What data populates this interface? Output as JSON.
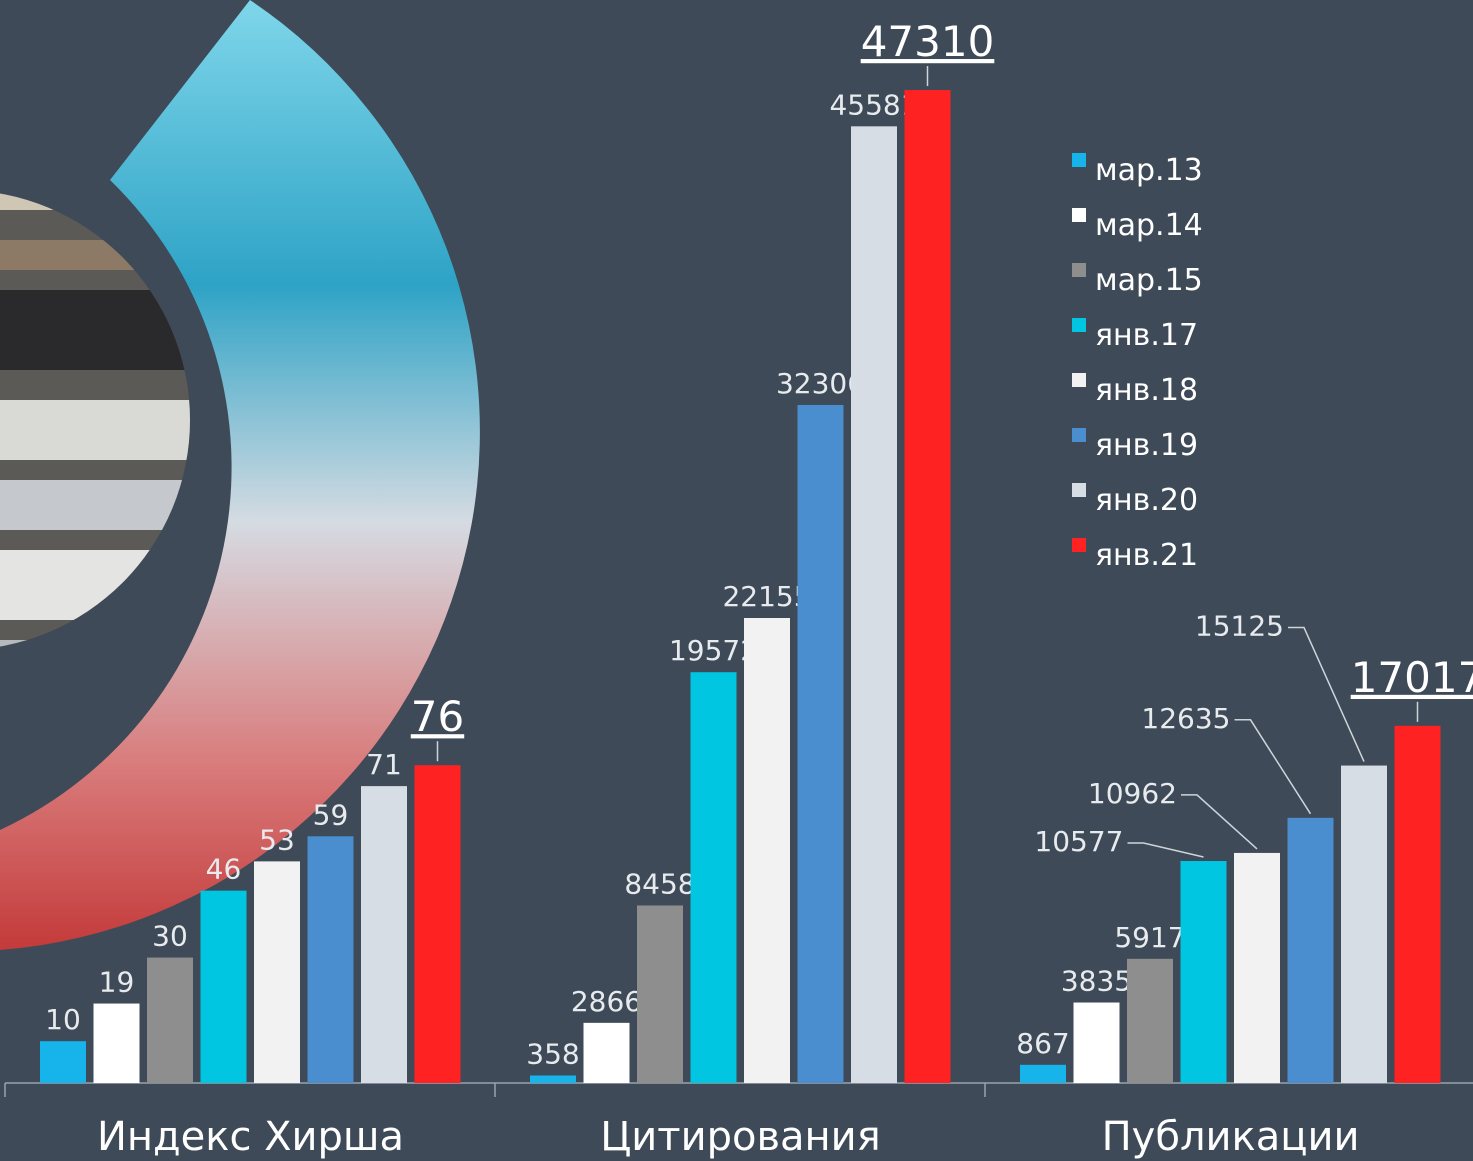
{
  "chart_data": {
    "type": "bar",
    "categories": [
      "Индекс Хирша",
      "Цитирования",
      "Публикации"
    ],
    "series": [
      {
        "name": "мар.13",
        "color": "#16b4ea",
        "values": [
          10,
          358,
          867
        ]
      },
      {
        "name": "мар.14",
        "color": "#ffffff",
        "values": [
          19,
          2866,
          3835
        ]
      },
      {
        "name": "мар.15",
        "color": "#8e8e8e",
        "values": [
          30,
          8458,
          5917
        ]
      },
      {
        "name": "янв.17",
        "color": "#00c6e2",
        "values": [
          46,
          19572,
          10577
        ]
      },
      {
        "name": "янв.18",
        "color": "#f2f2f2",
        "values": [
          53,
          22155,
          10962
        ]
      },
      {
        "name": "янв.19",
        "color": "#4a8ecf",
        "values": [
          59,
          32306,
          12635
        ]
      },
      {
        "name": "янв.20",
        "color": "#d7dde5",
        "values": [
          71,
          45581,
          15125
        ]
      },
      {
        "name": "янв.21",
        "color": "#ff2222",
        "values": [
          76,
          47310,
          17017
        ]
      }
    ],
    "ylim": [
      [
        0,
        259
      ],
      [
        0,
        51600
      ],
      [
        0,
        51600
      ]
    ]
  }
}
